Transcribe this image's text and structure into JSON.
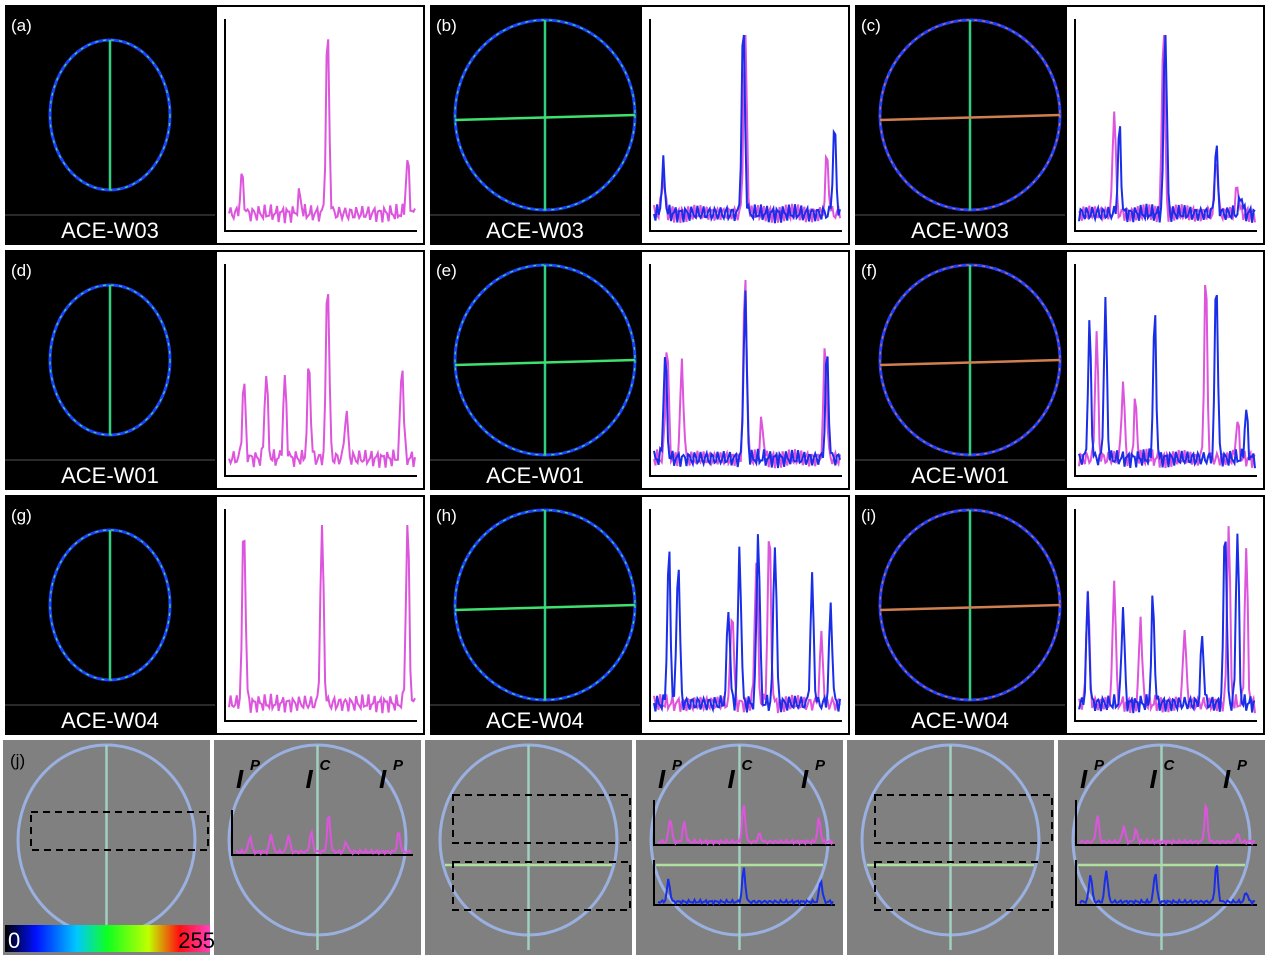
{
  "panels": [
    {
      "label": "(a)",
      "caption": "ACE-W03"
    },
    {
      "label": "(b)",
      "caption": "ACE-W03"
    },
    {
      "label": "(c)",
      "caption": "ACE-W03"
    },
    {
      "label": "(d)",
      "caption": "ACE-W01"
    },
    {
      "label": "(e)",
      "caption": "ACE-W01"
    },
    {
      "label": "(f)",
      "caption": "ACE-W01"
    },
    {
      "label": "(g)",
      "caption": "ACE-W04"
    },
    {
      "label": "(h)",
      "caption": "ACE-W04"
    },
    {
      "label": "(i)",
      "caption": "ACE-W04"
    }
  ],
  "row_j": {
    "label": "(j)",
    "colorbar": {
      "min": 0,
      "max": 255
    },
    "overlays": [
      [
        {
          "base": "I",
          "sup": "P"
        },
        {
          "base": "I",
          "sup": "C"
        },
        {
          "base": "I",
          "sup": "P"
        }
      ],
      [
        {
          "base": "I",
          "sup": "P"
        },
        {
          "base": "I",
          "sup": "C"
        },
        {
          "base": "I",
          "sup": "P"
        }
      ],
      [
        {
          "base": "I",
          "sup": "P"
        },
        {
          "base": "I",
          "sup": "C"
        },
        {
          "base": "I",
          "sup": "P"
        }
      ]
    ]
  }
}
